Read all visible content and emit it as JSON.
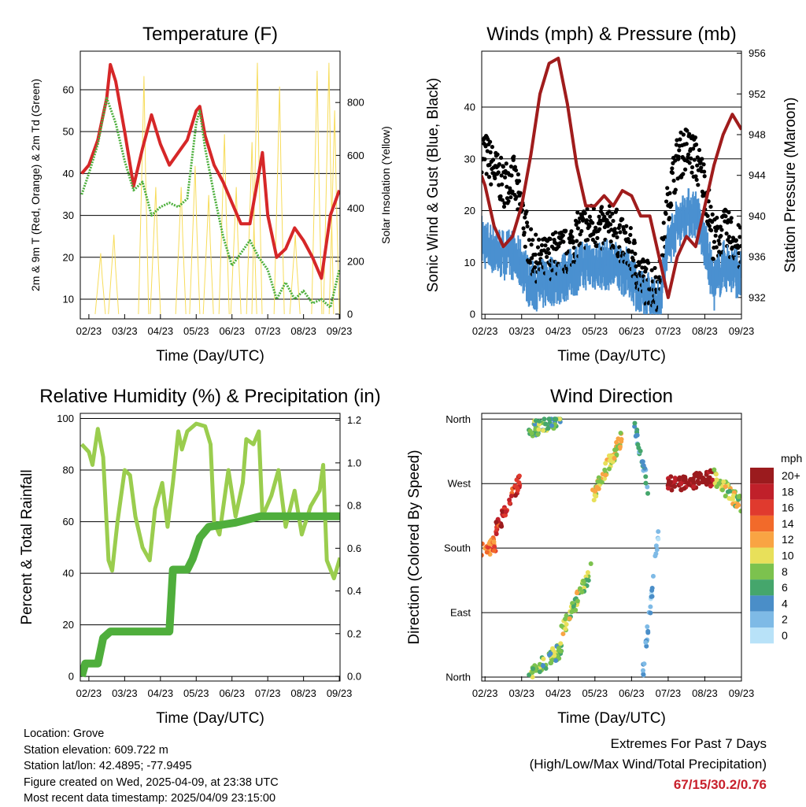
{
  "x_ticks": [
    "02/23",
    "03/23",
    "04/23",
    "05/23",
    "06/23",
    "07/23",
    "08/23",
    "09/23"
  ],
  "chart_data": [
    {
      "type": "line",
      "title": "Temperature (F)",
      "xlabel": "Time (Day/UTC)",
      "ylabel": "2m & 9m T (Red, Orange) & 2m Td (Green)",
      "y2label": "Solar Insolation (Yellow)",
      "xlim": [
        -0.24,
        7.02
      ],
      "ylim": [
        5.3,
        69.2
      ],
      "y2lim": [
        -18,
        994
      ],
      "yticks": [
        10,
        20,
        30,
        40,
        50,
        60
      ],
      "y2ticks": [
        0,
        200,
        400,
        600,
        800
      ],
      "colors": {
        "temp": "#d62728",
        "dew": "#4caf3c",
        "solar": "#f7dc5a"
      },
      "temperature": [
        [
          -0.2,
          40
        ],
        [
          0,
          42
        ],
        [
          0.25,
          48
        ],
        [
          0.5,
          58
        ],
        [
          0.6,
          66
        ],
        [
          0.75,
          62
        ],
        [
          1,
          50
        ],
        [
          1.25,
          37
        ],
        [
          1.5,
          46
        ],
        [
          1.75,
          54
        ],
        [
          2,
          47
        ],
        [
          2.25,
          42
        ],
        [
          2.5,
          45
        ],
        [
          2.75,
          48
        ],
        [
          3,
          55
        ],
        [
          3.1,
          56
        ],
        [
          3.25,
          49
        ],
        [
          3.5,
          42
        ],
        [
          3.75,
          38
        ],
        [
          4,
          33
        ],
        [
          4.25,
          28
        ],
        [
          4.5,
          28
        ],
        [
          4.75,
          40
        ],
        [
          4.85,
          45
        ],
        [
          5,
          30
        ],
        [
          5.25,
          20
        ],
        [
          5.5,
          22
        ],
        [
          5.75,
          27
        ],
        [
          6,
          24
        ],
        [
          6.25,
          20
        ],
        [
          6.5,
          15
        ],
        [
          6.75,
          30
        ],
        [
          7,
          36
        ]
      ],
      "dewpoint": [
        [
          -0.2,
          35
        ],
        [
          0,
          40
        ],
        [
          0.25,
          47
        ],
        [
          0.5,
          58
        ],
        [
          0.75,
          52
        ],
        [
          1,
          43
        ],
        [
          1.25,
          36
        ],
        [
          1.5,
          38
        ],
        [
          1.75,
          30
        ],
        [
          2,
          32
        ],
        [
          2.25,
          33
        ],
        [
          2.5,
          32
        ],
        [
          2.75,
          34
        ],
        [
          3,
          52
        ],
        [
          3.1,
          55
        ],
        [
          3.25,
          46
        ],
        [
          3.5,
          35
        ],
        [
          3.75,
          25
        ],
        [
          4,
          18
        ],
        [
          4.25,
          21
        ],
        [
          4.5,
          24
        ],
        [
          4.75,
          20
        ],
        [
          5,
          17
        ],
        [
          5.25,
          10
        ],
        [
          5.5,
          14
        ],
        [
          5.75,
          10
        ],
        [
          6,
          12
        ],
        [
          6.25,
          9
        ],
        [
          6.5,
          10
        ],
        [
          6.75,
          8
        ],
        [
          7,
          17
        ]
      ],
      "solar_peaks": [
        [
          0.33,
          230
        ],
        [
          0.7,
          300
        ],
        [
          1.54,
          900
        ],
        [
          1.87,
          480
        ],
        [
          2.58,
          480
        ],
        [
          2.97,
          560
        ],
        [
          3.35,
          450
        ],
        [
          3.79,
          680
        ],
        [
          4.12,
          480
        ],
        [
          4.56,
          650
        ],
        [
          4.71,
          950
        ],
        [
          5.33,
          860
        ],
        [
          5.77,
          300
        ],
        [
          6.38,
          920
        ],
        [
          6.71,
          950
        ],
        [
          6.87,
          770
        ]
      ]
    },
    {
      "type": "scatter",
      "title": "Winds (mph) & Pressure (mb)",
      "xlabel": "Time (Day/UTC)",
      "ylabel": "Sonic Wind & Gust (Blue, Black)",
      "y2label": "Station Pressure (Maroon)",
      "xlim": [
        -0.09,
        7.0
      ],
      "ylim": [
        -0.9,
        50.8
      ],
      "y2lim": [
        929.9,
        956.2
      ],
      "yticks": [
        0,
        10,
        20,
        30,
        40
      ],
      "y2ticks": [
        932,
        936,
        940,
        944,
        948,
        952,
        956
      ],
      "colors": {
        "wind": "#4a90d0",
        "gust": "#000000",
        "pressure": "#a01c1c"
      },
      "gust": [
        [
          -0.1,
          32
        ],
        [
          0,
          31
        ],
        [
          0.25,
          28
        ],
        [
          0.5,
          25
        ],
        [
          0.75,
          27
        ],
        [
          1,
          20
        ],
        [
          1.25,
          12
        ],
        [
          1.5,
          10
        ],
        [
          1.75,
          11
        ],
        [
          2,
          12
        ],
        [
          2.25,
          12
        ],
        [
          2.5,
          15
        ],
        [
          2.75,
          17
        ],
        [
          3,
          17
        ],
        [
          3.25,
          16
        ],
        [
          3.5,
          17
        ],
        [
          3.75,
          14
        ],
        [
          4,
          12
        ],
        [
          4.25,
          7
        ],
        [
          4.5,
          6
        ],
        [
          4.75,
          5
        ],
        [
          5,
          22
        ],
        [
          5.25,
          30
        ],
        [
          5.5,
          32
        ],
        [
          5.75,
          30
        ],
        [
          6,
          25
        ],
        [
          6.25,
          14
        ],
        [
          6.5,
          16
        ],
        [
          6.75,
          15
        ],
        [
          7,
          12
        ]
      ],
      "wind": [
        [
          -0.1,
          15
        ],
        [
          0,
          14
        ],
        [
          0.25,
          13
        ],
        [
          0.5,
          12
        ],
        [
          0.75,
          12
        ],
        [
          1,
          10
        ],
        [
          1.25,
          6
        ],
        [
          1.5,
          6
        ],
        [
          1.75,
          7
        ],
        [
          2,
          7
        ],
        [
          2.25,
          8
        ],
        [
          2.5,
          9
        ],
        [
          2.75,
          10
        ],
        [
          3,
          10
        ],
        [
          3.25,
          10
        ],
        [
          3.5,
          10
        ],
        [
          3.75,
          9
        ],
        [
          4,
          8
        ],
        [
          4.25,
          4
        ],
        [
          4.5,
          4
        ],
        [
          4.75,
          2
        ],
        [
          5,
          14
        ],
        [
          5.25,
          18
        ],
        [
          5.5,
          20
        ],
        [
          5.75,
          20
        ],
        [
          6,
          14
        ],
        [
          6.25,
          6
        ],
        [
          6.5,
          10
        ],
        [
          6.75,
          9
        ],
        [
          7,
          8
        ]
      ],
      "pressure": [
        [
          -0.1,
          944
        ],
        [
          0,
          943
        ],
        [
          0.25,
          939
        ],
        [
          0.5,
          937
        ],
        [
          0.75,
          938
        ],
        [
          1,
          941
        ],
        [
          1.25,
          946
        ],
        [
          1.5,
          952
        ],
        [
          1.75,
          955
        ],
        [
          2,
          955.5
        ],
        [
          2.25,
          951
        ],
        [
          2.5,
          945
        ],
        [
          2.75,
          941
        ],
        [
          3,
          941
        ],
        [
          3.25,
          942
        ],
        [
          3.5,
          941
        ],
        [
          3.75,
          942.5
        ],
        [
          4,
          942
        ],
        [
          4.25,
          940
        ],
        [
          4.5,
          940
        ],
        [
          4.75,
          936
        ],
        [
          5,
          932
        ],
        [
          5.25,
          936
        ],
        [
          5.5,
          938
        ],
        [
          5.75,
          937
        ],
        [
          6,
          941
        ],
        [
          6.25,
          945
        ],
        [
          6.5,
          948
        ],
        [
          6.75,
          950
        ],
        [
          7,
          948.5
        ]
      ]
    },
    {
      "type": "line",
      "title": "Relative Humidity (%) & Precipitation (in)",
      "xlabel": "Time (Day/UTC)",
      "ylabel": "Percent & Total Rainfall",
      "xlim": [
        -0.24,
        7.02
      ],
      "ylim": [
        -1.8,
        102
      ],
      "y2lim": [
        -0.022,
        1.232
      ],
      "yticks": [
        0,
        20,
        40,
        60,
        80,
        100
      ],
      "y2ticks": [
        "0.0",
        "0.2",
        "0.4",
        "0.6",
        "0.8",
        "1.0",
        "1.2"
      ],
      "colors": {
        "rh": "#9acd4e",
        "precip": "#4fae3c"
      },
      "rh": [
        [
          -0.2,
          90
        ],
        [
          0,
          87
        ],
        [
          0.1,
          82
        ],
        [
          0.25,
          96
        ],
        [
          0.4,
          85
        ],
        [
          0.55,
          45
        ],
        [
          0.65,
          41
        ],
        [
          0.8,
          60
        ],
        [
          1,
          80
        ],
        [
          1.15,
          78
        ],
        [
          1.3,
          62
        ],
        [
          1.5,
          50
        ],
        [
          1.7,
          45
        ],
        [
          1.85,
          65
        ],
        [
          2.05,
          75
        ],
        [
          2.2,
          58
        ],
        [
          2.35,
          75
        ],
        [
          2.5,
          95
        ],
        [
          2.6,
          88
        ],
        [
          2.75,
          95
        ],
        [
          3,
          98
        ],
        [
          3.25,
          97
        ],
        [
          3.4,
          90
        ],
        [
          3.5,
          60
        ],
        [
          3.65,
          55
        ],
        [
          3.9,
          80
        ],
        [
          4.1,
          62
        ],
        [
          4.3,
          75
        ],
        [
          4.4,
          92
        ],
        [
          4.6,
          90
        ],
        [
          4.75,
          95
        ],
        [
          4.85,
          62
        ],
        [
          5.1,
          70
        ],
        [
          5.3,
          80
        ],
        [
          5.5,
          58
        ],
        [
          5.75,
          72
        ],
        [
          5.95,
          55
        ],
        [
          6.2,
          66
        ],
        [
          6.45,
          72
        ],
        [
          6.55,
          82
        ],
        [
          6.65,
          45
        ],
        [
          6.85,
          38
        ],
        [
          7.02,
          46
        ]
      ],
      "precip": [
        [
          -0.2,
          0
        ],
        [
          -0.1,
          0.06
        ],
        [
          0.25,
          0.06
        ],
        [
          0.4,
          0.18
        ],
        [
          0.6,
          0.21
        ],
        [
          2.25,
          0.21
        ],
        [
          2.35,
          0.5
        ],
        [
          2.75,
          0.5
        ],
        [
          2.9,
          0.55
        ],
        [
          3.1,
          0.65
        ],
        [
          3.35,
          0.7
        ],
        [
          4.1,
          0.72
        ],
        [
          4.8,
          0.75
        ],
        [
          7.02,
          0.75
        ]
      ]
    },
    {
      "type": "scatter",
      "title": "Wind Direction",
      "xlabel": "Time (Day/UTC)",
      "ylabel": "Direction (Colored By Speed)",
      "xlim": [
        -0.09,
        7.0
      ],
      "ylim": [
        -5.5,
        368
      ],
      "yticks": [
        [
          0,
          "North"
        ],
        [
          90,
          "East"
        ],
        [
          180,
          "South"
        ],
        [
          270,
          "West"
        ],
        [
          360,
          "North"
        ]
      ],
      "legend": {
        "title": "mph",
        "labels": [
          "20+",
          "18",
          "16",
          "14",
          "12",
          "10",
          "8",
          "6",
          "4",
          "2",
          "0"
        ],
        "colors": [
          "#9b1b1e",
          "#c0202a",
          "#e03a2e",
          "#f26a2a",
          "#f9a443",
          "#e8e05a",
          "#7cc24e",
          "#45a66c",
          "#4a8ec8",
          "#7ebae6",
          "#b8e2f8"
        ]
      },
      "segments": [
        [
          -0.1,
          178,
          0.3,
          185,
          14
        ],
        [
          0.3,
          205,
          0.95,
          275,
          17
        ],
        [
          1.2,
          345,
          2.07,
          360,
          7
        ],
        [
          1.2,
          2,
          2.1,
          40,
          7
        ],
        [
          2.07,
          60,
          2.9,
          150,
          9
        ],
        [
          2.9,
          250,
          3.75,
          335,
          10
        ],
        [
          4.08,
          355,
          4.5,
          250,
          4
        ],
        [
          4.3,
          0,
          4.73,
          200,
          3
        ],
        [
          4.95,
          268,
          6.25,
          278,
          21
        ],
        [
          6.25,
          280,
          7.0,
          240,
          9
        ]
      ]
    }
  ],
  "info": {
    "location": "Location: Grove",
    "elevation": "Station elevation: 609.722 m",
    "latlon": "Station lat/lon: 42.4895; -77.9495",
    "created": "Figure created on Wed, 2025-04-09, at 23:38 UTC",
    "recent": "Most recent data timestamp: 2025/04/09 23:15:00"
  },
  "extremes": {
    "title": "Extremes For Past 7 Days",
    "subtitle": "(High/Low/Max Wind/Total Precipitation)",
    "values": "67/15/30.2/0.76"
  }
}
